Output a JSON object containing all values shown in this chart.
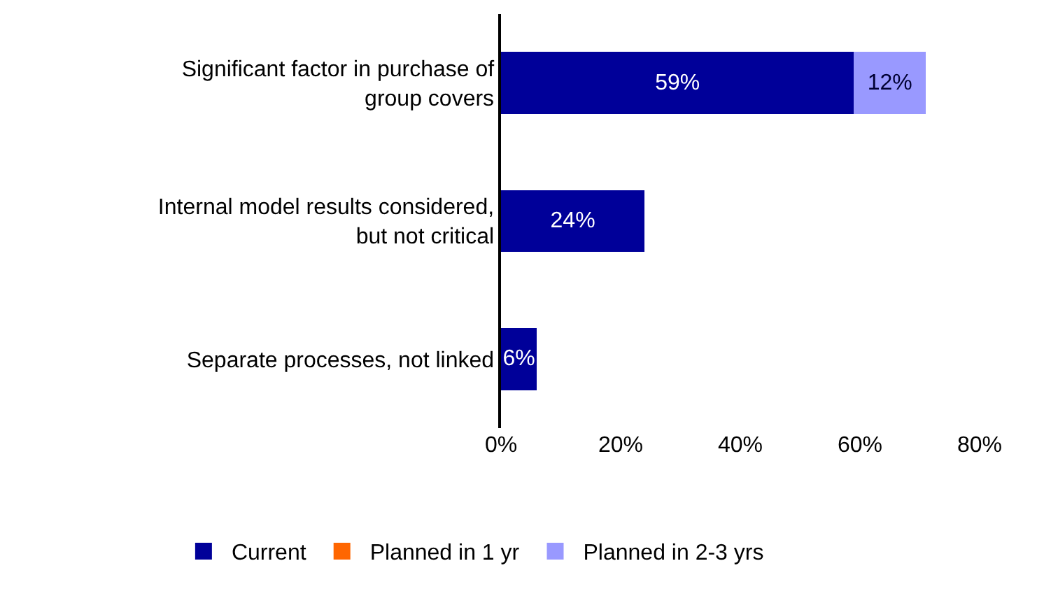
{
  "chart_data": {
    "type": "bar",
    "orientation": "horizontal",
    "stacked": true,
    "categories": [
      "Significant factor in purchase of group covers",
      "Internal model results considered, but not critical",
      "Separate processes, not linked"
    ],
    "series": [
      {
        "name": "Current",
        "color": "#000099",
        "values": [
          59,
          24,
          6
        ],
        "value_labels": [
          "59%",
          "24%",
          "6%"
        ]
      },
      {
        "name": "Planned in 1 yr",
        "color": "#ff6600",
        "values": [
          null,
          null,
          null
        ]
      },
      {
        "name": "Planned in 2-3 yrs",
        "color": "#9999ff",
        "values": [
          12,
          null,
          null
        ],
        "value_labels": [
          "12%",
          null,
          null
        ]
      }
    ],
    "xlim": [
      0,
      80
    ],
    "xticks": [
      {
        "value": 0,
        "label": "0%"
      },
      {
        "value": 20,
        "label": "20%"
      },
      {
        "value": 40,
        "label": "40%"
      },
      {
        "value": 60,
        "label": "60%"
      },
      {
        "value": 80,
        "label": "80%"
      }
    ],
    "grid": false,
    "legend": "bottom"
  }
}
